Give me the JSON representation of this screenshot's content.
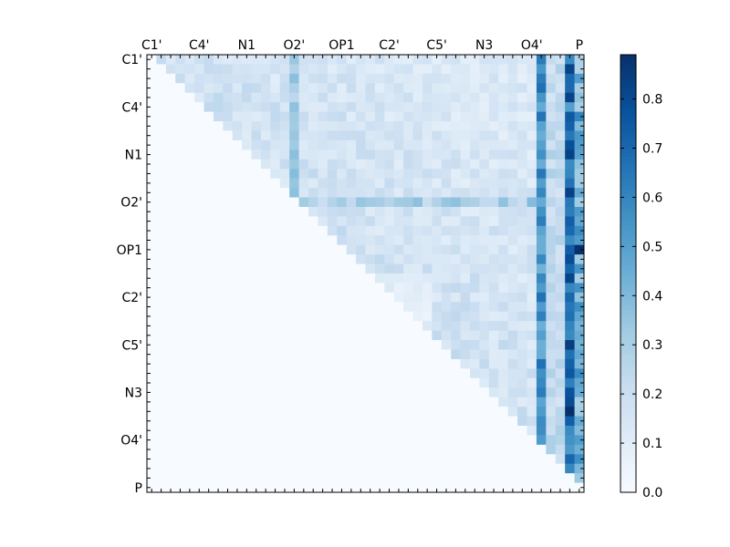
{
  "chart_data": {
    "type": "heatmap",
    "title": "",
    "xlabel": "",
    "ylabel": "",
    "n_cells": 46,
    "x_tick_labels": [
      "C1'",
      "C4'",
      "N1",
      "O2'",
      "OP1",
      "C2'",
      "C5'",
      "N3",
      "O4'",
      "P"
    ],
    "y_tick_labels": [
      "C1'",
      "C4'",
      "N1",
      "O2'",
      "OP1",
      "C2'",
      "C5'",
      "N3",
      "O4'",
      "P"
    ],
    "label_step": 5,
    "colormap": "Blues",
    "colors": {
      "low": "#f7fbff",
      "high": "#08306b",
      "blues_stops": [
        "#f7fbff",
        "#deebf7",
        "#c6dbef",
        "#9ecae1",
        "#6baed6",
        "#4292c6",
        "#2171b5",
        "#08519c",
        "#08306b"
      ]
    },
    "colorbar": {
      "vmin": 0.0,
      "vmax": 0.89,
      "ticks": [
        "0.0",
        "0.1",
        "0.2",
        "0.3",
        "0.4",
        "0.5",
        "0.6",
        "0.7",
        "0.8"
      ]
    },
    "pattern": "upper-triangular correlation matrix; row/column at index 15 (O2') and columns 41-45 (O4'..P) carry the highest values",
    "highlight_values": {
      "background": 0.0,
      "upper_triangle_typical": 0.15,
      "row_15_band": 0.3,
      "column_41": 0.55,
      "column_44": 0.68,
      "column_45": 0.45,
      "peak": 0.89
    },
    "grid": false,
    "legend": "colorbar-right"
  }
}
